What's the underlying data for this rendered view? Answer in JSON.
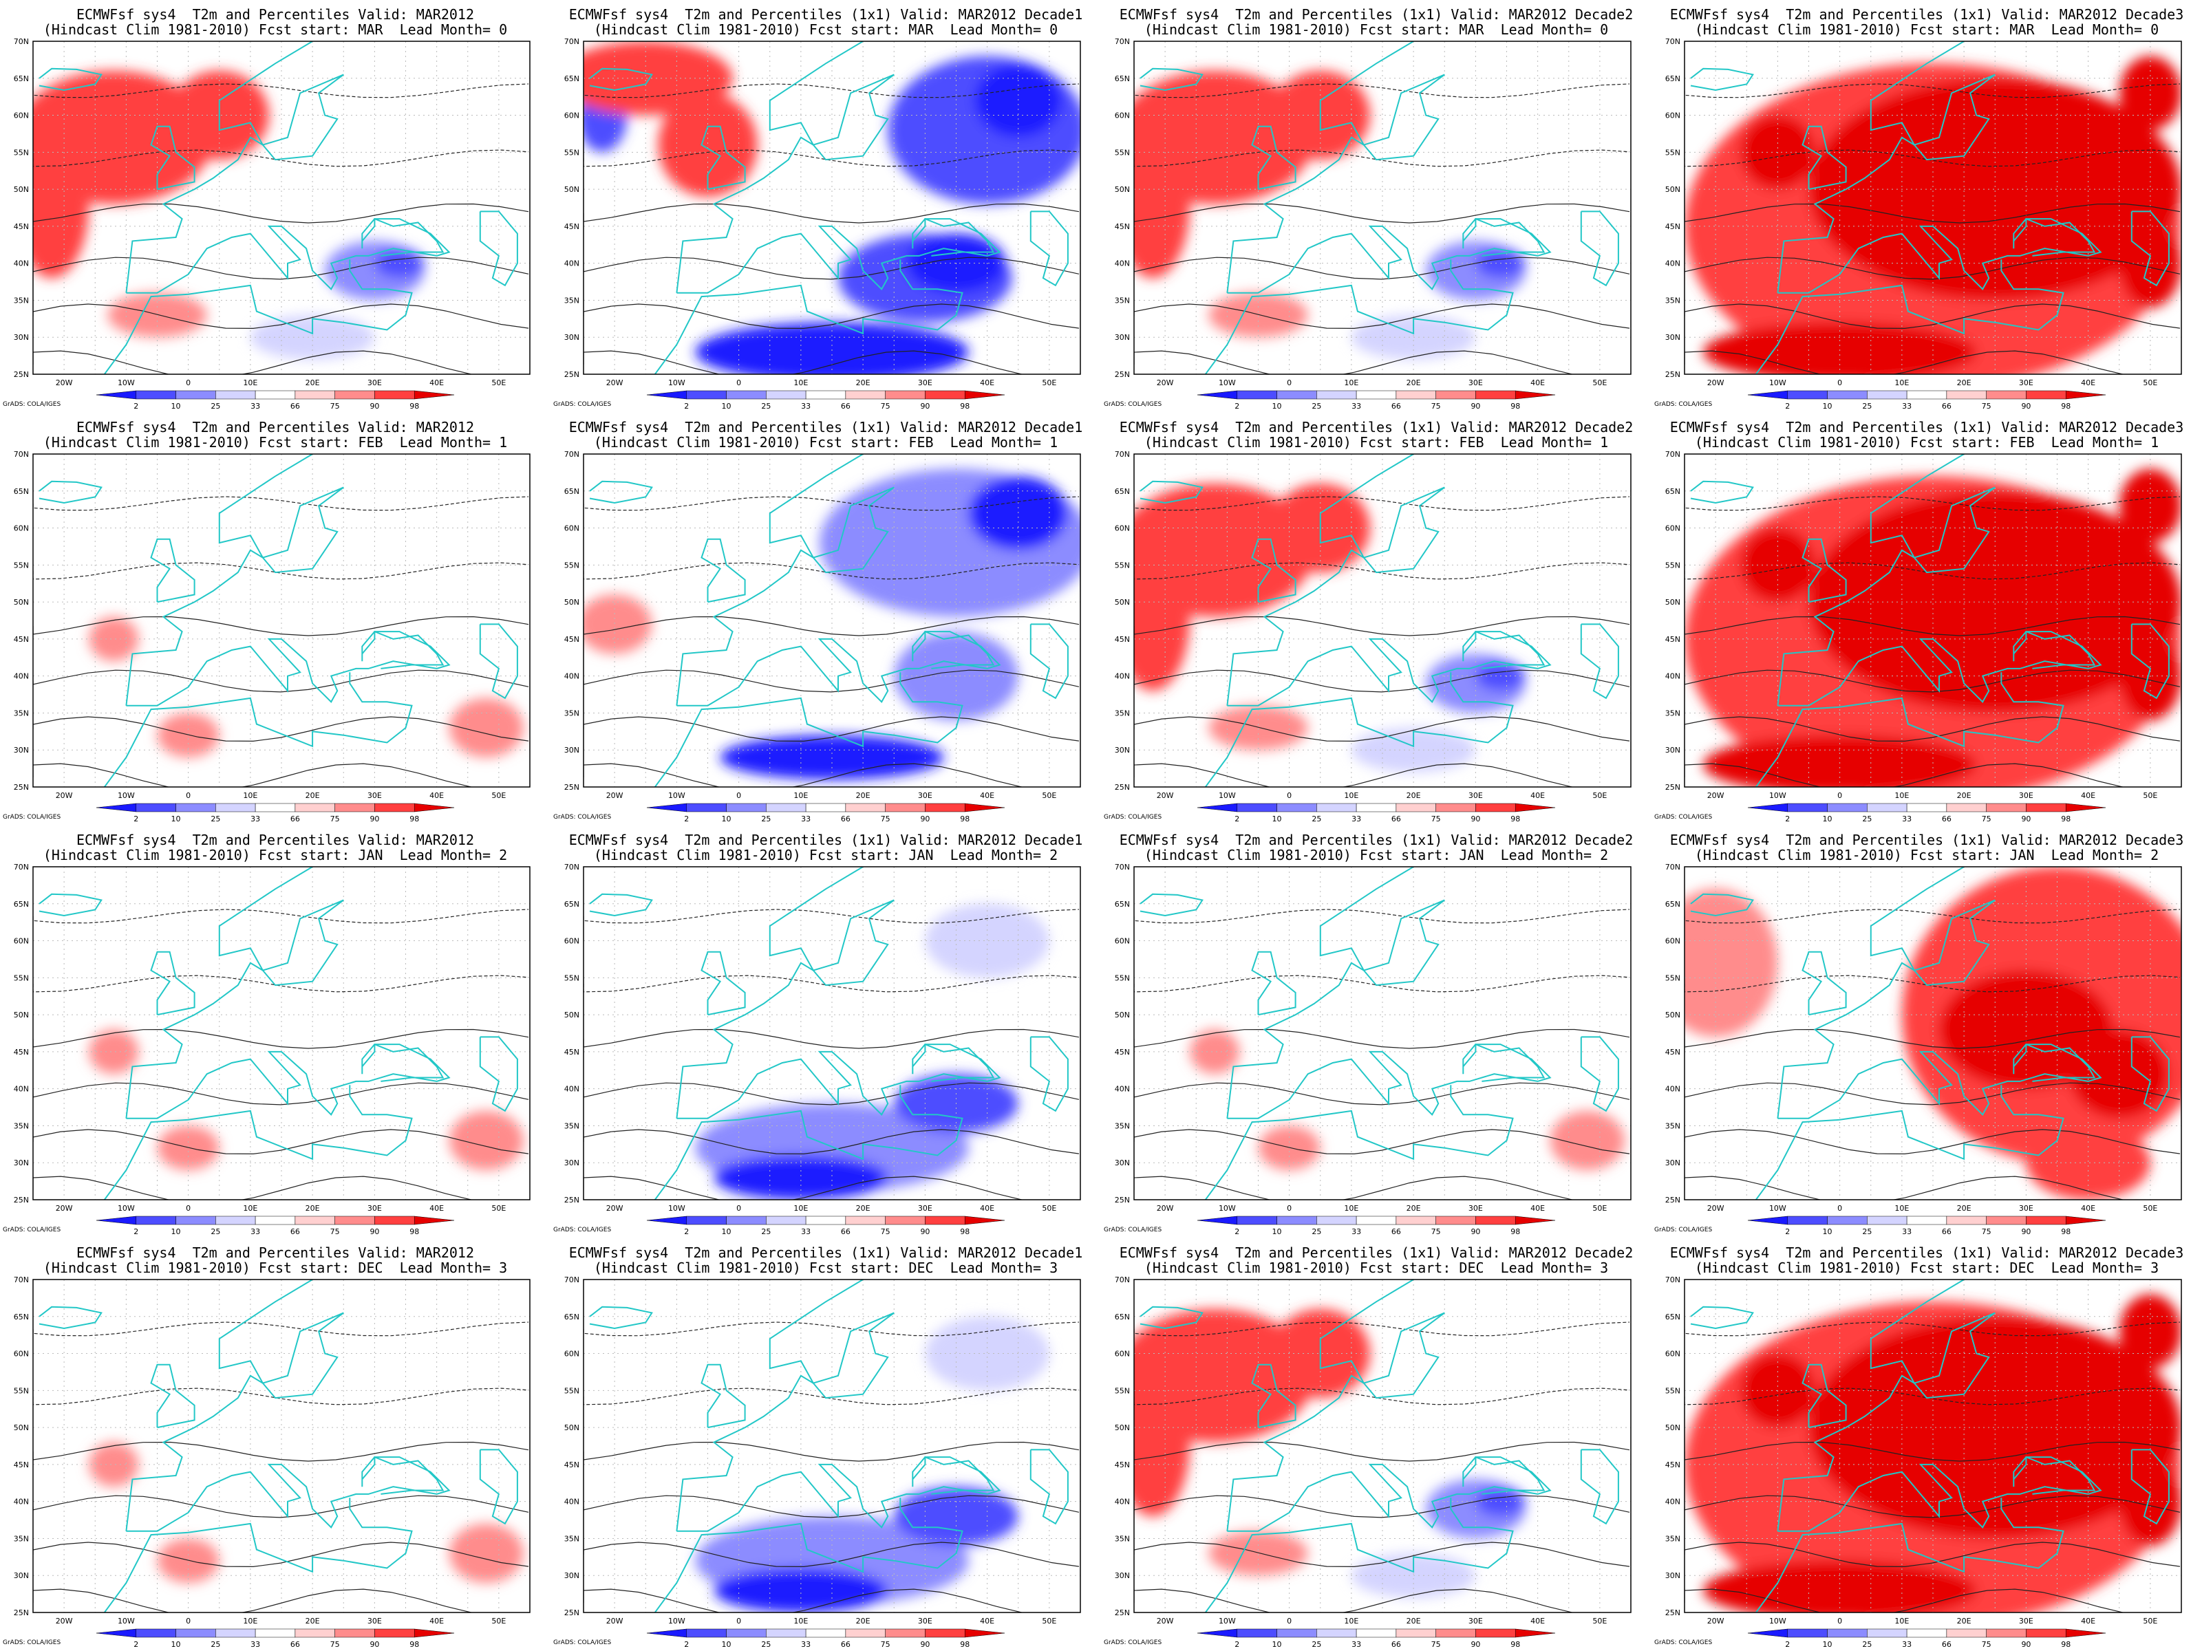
{
  "legend": {
    "ticks": [
      "2",
      "10",
      "25",
      "33",
      "66",
      "75",
      "90",
      "98"
    ],
    "colors": [
      "#1a1aff",
      "#4d4dff",
      "#8c8cff",
      "#d4d4ff",
      "#ffffff",
      "#ffd0d0",
      "#ff8c8c",
      "#ff4040",
      "#e60000"
    ]
  },
  "credit": "GrADS: COLA/IGES",
  "axes": {
    "lat_labels": [
      "70N",
      "65N",
      "60N",
      "55N",
      "50N",
      "45N",
      "40N",
      "35N",
      "30N",
      "25N"
    ],
    "lon_labels": [
      "20W",
      "10W",
      "0",
      "10E",
      "20E",
      "30E",
      "40E",
      "50E"
    ]
  },
  "panels": [
    {
      "line1": "ECMWFsf sys4  T2m and Percentiles Valid: MAR2012",
      "line2": "(Hindcast Clim 1981-2010) Fcst start: MAR  Lead Month= 0",
      "pattern": "mixed-warm"
    },
    {
      "line1": "ECMWFsf sys4  T2m and Percentiles (1x1) Valid: MAR2012 Decade1",
      "line2": "(Hindcast Clim 1981-2010) Fcst start: MAR  Lead Month= 0",
      "pattern": "strong-cold"
    },
    {
      "line1": "ECMWFsf sys4  T2m and Percentiles (1x1) Valid: MAR2012 Decade2",
      "line2": "(Hindcast Clim 1981-2010) Fcst start: MAR  Lead Month= 0",
      "pattern": "mixed-warm"
    },
    {
      "line1": "ECMWFsf sys4  T2m and Percentiles (1x1) Valid: MAR2012 Decade3",
      "line2": "(Hindcast Clim 1981-2010) Fcst start: MAR  Lead Month= 0",
      "pattern": "strong-warm"
    },
    {
      "line1": "ECMWFsf sys4  T2m and Percentiles Valid: MAR2012",
      "line2": "(Hindcast Clim 1981-2010) Fcst start: FEB  Lead Month= 1",
      "pattern": "weak-warm"
    },
    {
      "line1": "ECMWFsf sys4  T2m and Percentiles (1x1) Valid: MAR2012 Decade1",
      "line2": "(Hindcast Clim 1981-2010) Fcst start: FEB  Lead Month= 1",
      "pattern": "cold-north"
    },
    {
      "line1": "ECMWFsf sys4  T2m and Percentiles (1x1) Valid: MAR2012 Decade2",
      "line2": "(Hindcast Clim 1981-2010) Fcst start: FEB  Lead Month= 1",
      "pattern": "mixed-warm"
    },
    {
      "line1": "ECMWFsf sys4  T2m and Percentiles (1x1) Valid: MAR2012 Decade3",
      "line2": "(Hindcast Clim 1981-2010) Fcst start: FEB  Lead Month= 1",
      "pattern": "strong-warm"
    },
    {
      "line1": "ECMWFsf sys4  T2m and Percentiles Valid: MAR2012",
      "line2": "(Hindcast Clim 1981-2010) Fcst start: JAN  Lead Month= 2",
      "pattern": "weak-warm"
    },
    {
      "line1": "ECMWFsf sys4  T2m and Percentiles (1x1) Valid: MAR2012 Decade1",
      "line2": "(Hindcast Clim 1981-2010) Fcst start: JAN  Lead Month= 2",
      "pattern": "cold-south"
    },
    {
      "line1": "ECMWFsf sys4  T2m and Percentiles (1x1) Valid: MAR2012 Decade2",
      "line2": "(Hindcast Clim 1981-2010) Fcst start: JAN  Lead Month= 2",
      "pattern": "weak-warm"
    },
    {
      "line1": "ECMWFsf sys4  T2m and Percentiles (1x1) Valid: MAR2012 Decade3",
      "line2": "(Hindcast Clim 1981-2010) Fcst start: JAN  Lead Month= 2",
      "pattern": "strong-warm-east"
    },
    {
      "line1": "ECMWFsf sys4  T2m and Percentiles Valid: MAR2012",
      "line2": "(Hindcast Clim 1981-2010) Fcst start: DEC  Lead Month= 3",
      "pattern": "weak-warm"
    },
    {
      "line1": "ECMWFsf sys4  T2m and Percentiles (1x1) Valid: MAR2012 Decade1",
      "line2": "(Hindcast Clim 1981-2010) Fcst start: DEC  Lead Month= 3",
      "pattern": "cold-south"
    },
    {
      "line1": "ECMWFsf sys4  T2m and Percentiles (1x1) Valid: MAR2012 Decade2",
      "line2": "(Hindcast Clim 1981-2010) Fcst start: DEC  Lead Month= 3",
      "pattern": "mixed-warm"
    },
    {
      "line1": "ECMWFsf sys4  T2m and Percentiles (1x1) Valid: MAR2012 Decade3",
      "line2": "(Hindcast Clim 1981-2010) Fcst start: DEC  Lead Month= 3",
      "pattern": "strong-warm"
    }
  ]
}
